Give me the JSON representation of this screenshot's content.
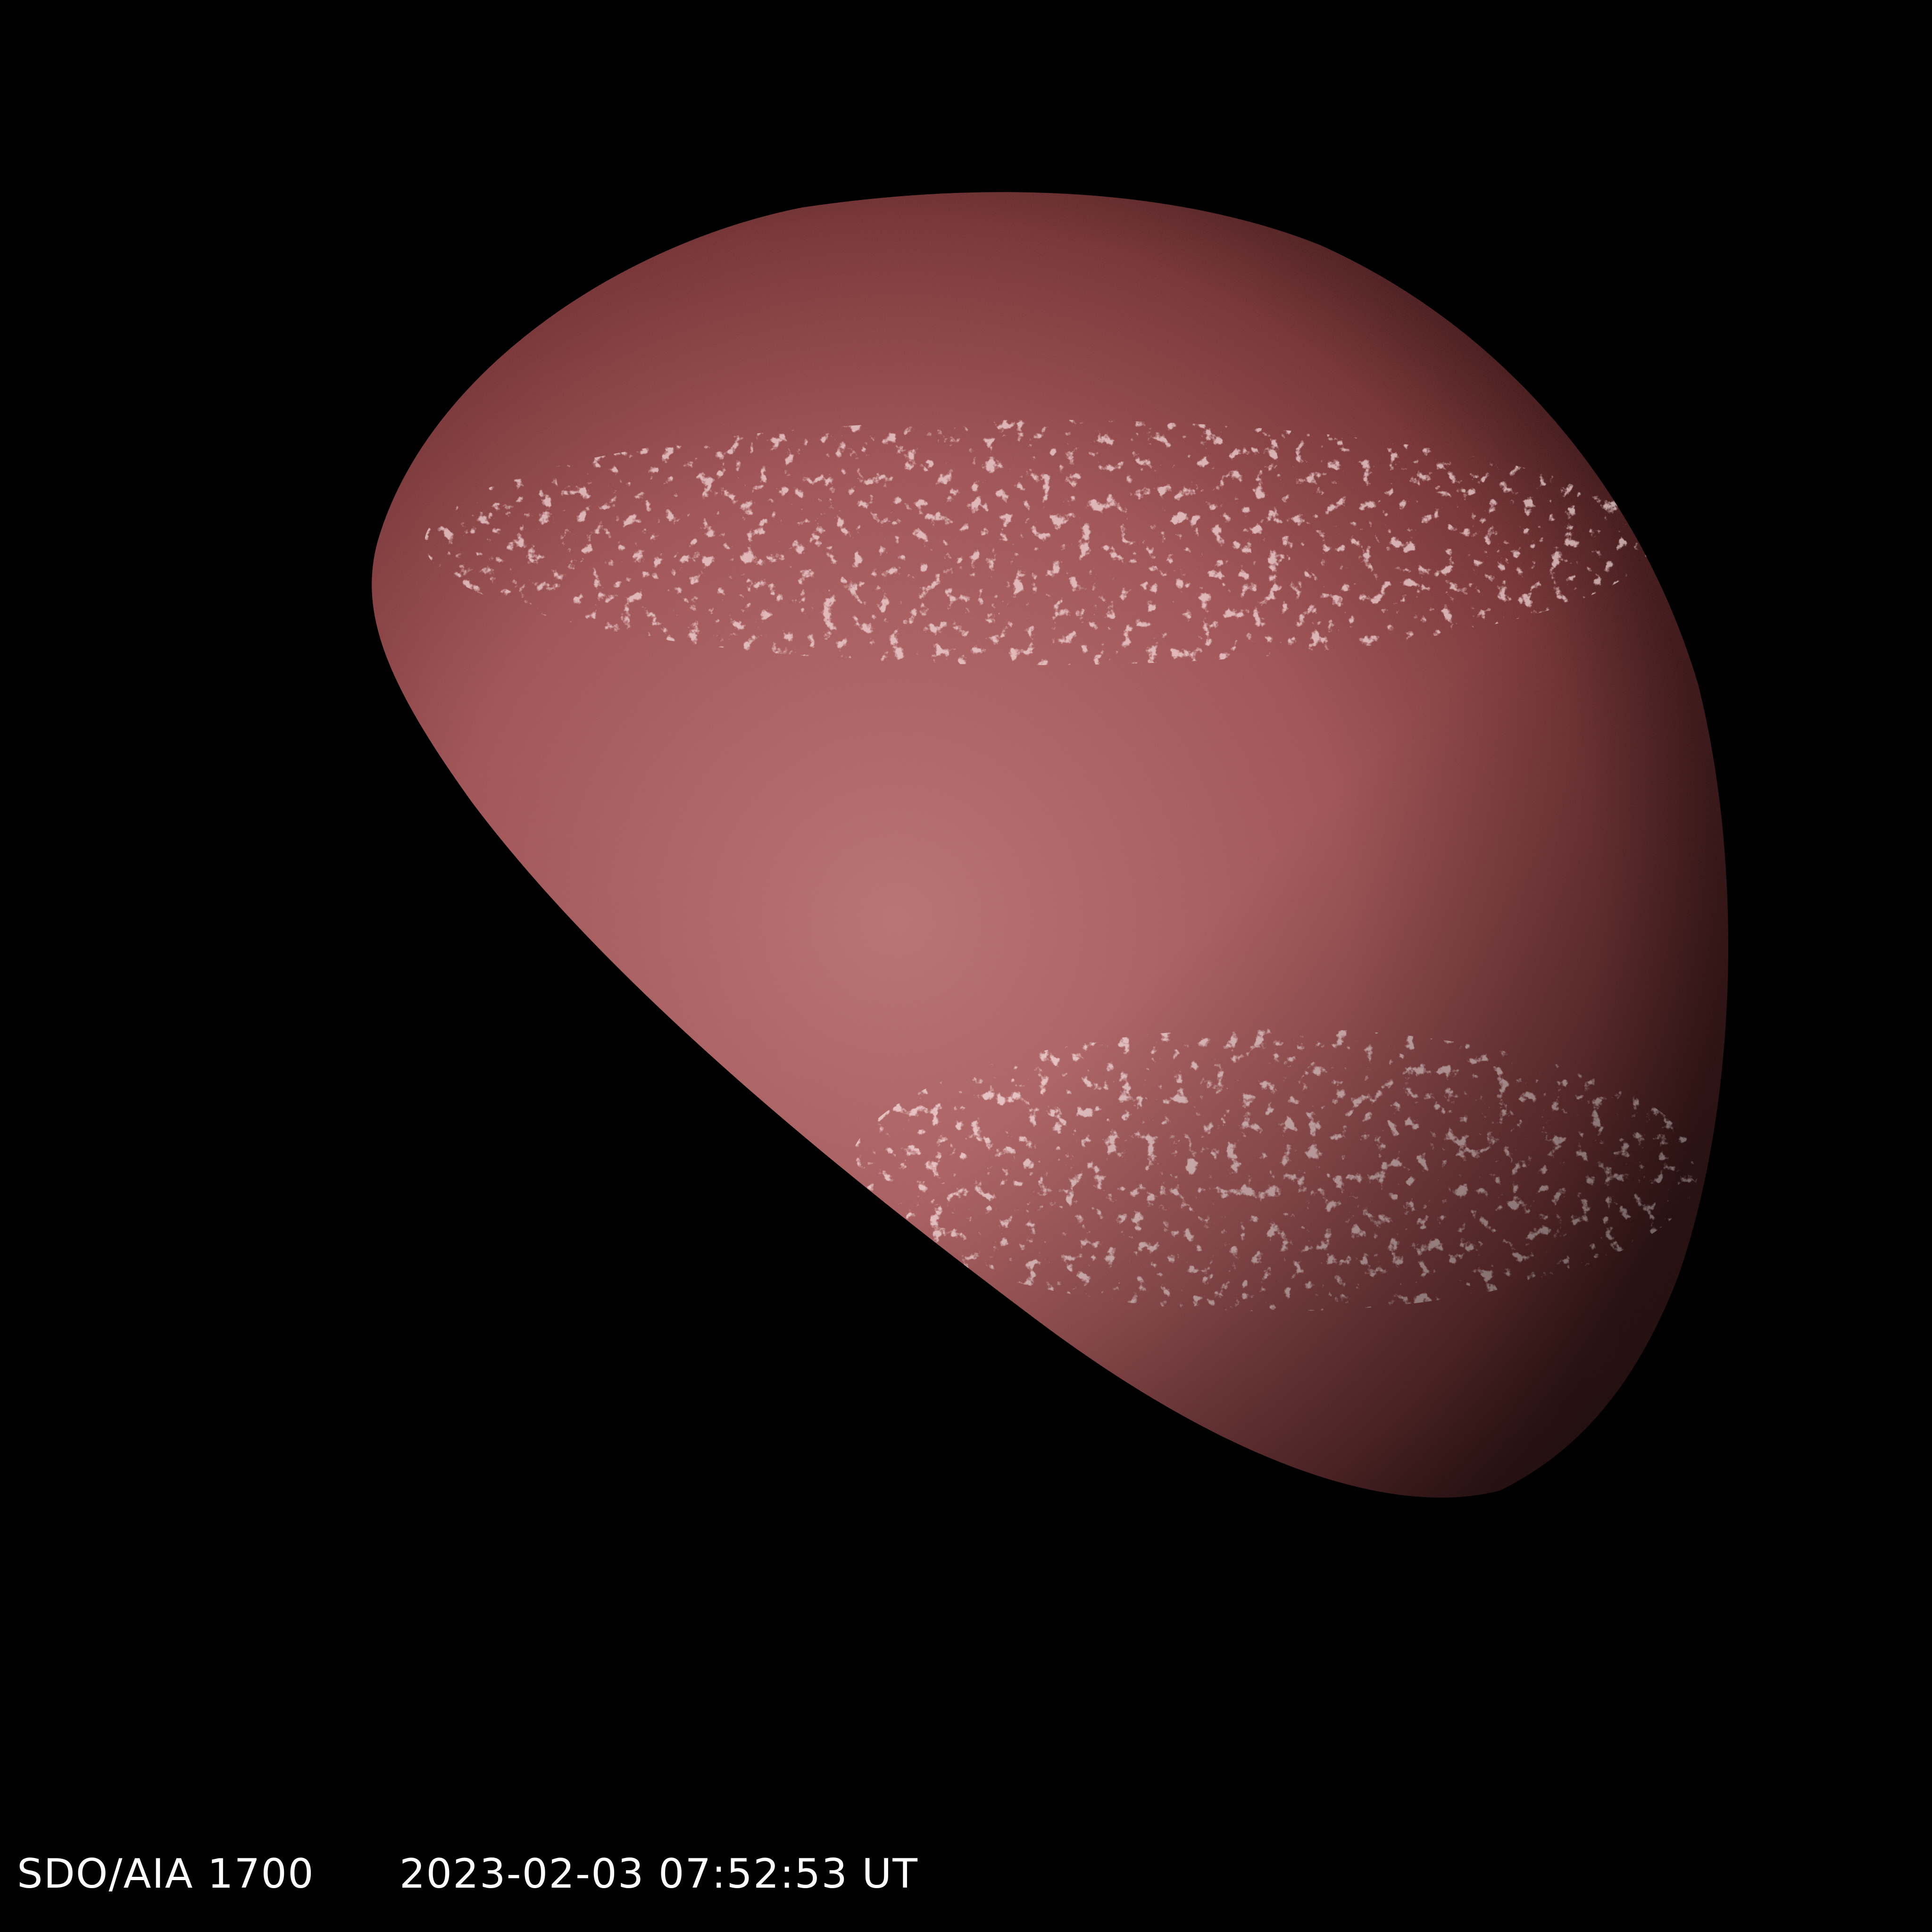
{
  "image": {
    "instrument_label": "SDO/AIA 1700",
    "timestamp_label": "2023-02-03 07:52:53 UT",
    "colors": {
      "background": "#000000",
      "disk_limb": "#3a0f10",
      "disk_mid": "#8a3c3e",
      "disk_bright": "#b46c6c",
      "plage": "#e8b4b4",
      "caption_text": "#ffffff"
    }
  }
}
